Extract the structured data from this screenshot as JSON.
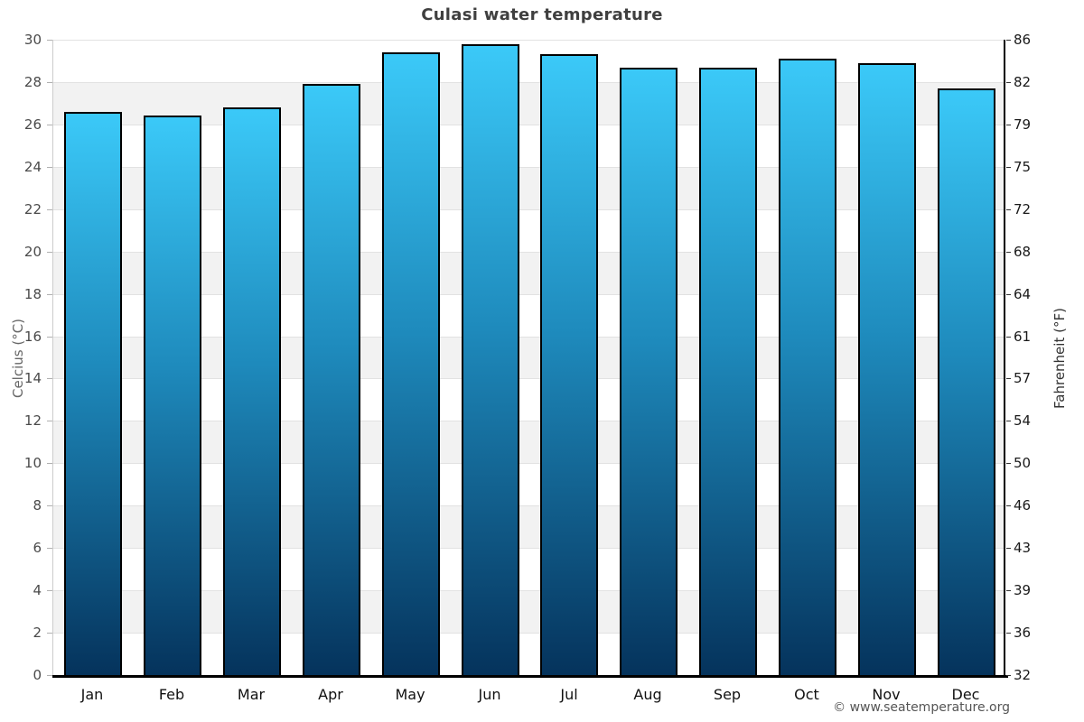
{
  "page": {
    "title": "Culasi water temperature",
    "footer": "© www.seatemperature.org"
  },
  "chart_data": {
    "type": "bar",
    "title": "Culasi water temperature",
    "categories": [
      "Jan",
      "Feb",
      "Mar",
      "Apr",
      "May",
      "Jun",
      "Jul",
      "Aug",
      "Sep",
      "Oct",
      "Nov",
      "Dec"
    ],
    "values": [
      26.6,
      26.4,
      26.8,
      27.9,
      29.4,
      29.8,
      29.3,
      28.7,
      28.7,
      29.1,
      28.9,
      27.7
    ],
    "ylabel_left": "Celcius (°C)",
    "ylabel_right": "Fahrenheit (°F)",
    "ylim_celsius": [
      0,
      30
    ],
    "celsius_ticks": [
      0,
      2,
      4,
      6,
      8,
      10,
      12,
      14,
      16,
      18,
      20,
      22,
      24,
      26,
      28,
      30
    ],
    "fahrenheit_ticks": [
      32,
      36,
      39,
      43,
      46,
      50,
      54,
      57,
      61,
      64,
      68,
      72,
      75,
      79,
      82,
      86
    ],
    "grid": "horizontal gridlines every 2°C with alternating white/gray bands",
    "legend": "none",
    "colors": {
      "bar_gradient_top": "#3bc9f8",
      "bar_gradient_mid": "#1e8abc",
      "bar_gradient_bottom": "#05335c",
      "bar_border": "#000000",
      "band_gray": "#f2f2f2",
      "band_white": "#ffffff",
      "gridline": "#e2e2e2",
      "axis_bottom": "#000000",
      "axis_left": "#cccccc",
      "axis_right": "#000000",
      "title_text": "#3f3f3f"
    }
  }
}
